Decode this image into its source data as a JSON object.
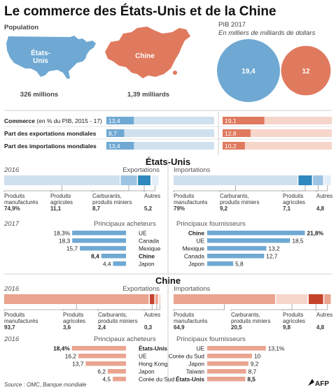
{
  "colors": {
    "us": "#6fa9d3",
    "us_light": "#cfe0ef",
    "us_mid": "#9cc3e2",
    "us_dark": "#2f88be",
    "cn": "#e07a5f",
    "cn_light": "#f6d5ca",
    "cn_mid": "#eaa48f",
    "cn_dark": "#c6432b",
    "text": "#1a1a1a",
    "grey": "#555555",
    "line": "#bdbdbd"
  },
  "title": "Le commerce des États-Unis et de la Chine",
  "population": {
    "heading": "Population",
    "us_name": "États-\nUnis",
    "us_value": "326 millions",
    "cn_name": "Chine",
    "cn_value": "1,39 milliards"
  },
  "pib": {
    "heading": "PIB 2017",
    "subheading": "En milliers de milliards de dollars",
    "us_label": "19,4",
    "cn_label": "12"
  },
  "comparison": {
    "rows": [
      {
        "label_bold": "Commerce",
        "label_rest": " (en % du PIB, 2015 - 17)",
        "us_label": "13,4",
        "cn_label": "19,1"
      },
      {
        "label_bold": "Part des exportations mondiales",
        "label_rest": "",
        "us_label": "8,7",
        "cn_label": "12,8"
      },
      {
        "label_bold": "Part des importations mondiales",
        "label_rest": "",
        "us_label": "13,4",
        "cn_label": "10,2"
      }
    ]
  },
  "us_section": {
    "title": "États-Unis",
    "year_struct": "2016",
    "exports_title": "Exportations",
    "imports_title": "Importations",
    "year_partners": "2017",
    "buyers_title": "Principaux acheteurs",
    "suppliers_title": "Principaux fournisseurs"
  },
  "cn_section": {
    "title": "Chine",
    "year_struct": "2016",
    "exports_title": "Exportations",
    "imports_title": "Importations",
    "year_partners": "2016",
    "buyers_title": "Principaux acheteurs",
    "suppliers_title": "Principaux fournisseurs"
  },
  "source": "Source : OMC, Banque mondiale",
  "logo_text": "AFP",
  "chart_data": [
    {
      "type": "bar",
      "title": "PIB 2017",
      "subtitle": "En milliers de milliards de dollars",
      "categories": [
        "États-Unis",
        "Chine"
      ],
      "values": [
        19.4,
        12
      ]
    },
    {
      "type": "bar",
      "categories": [
        "Commerce (en % du PIB, 2015 - 17)",
        "Part des exportations mondiales",
        "Part des importations mondiales"
      ],
      "series": [
        {
          "name": "États-Unis",
          "values": [
            13.4,
            8.7,
            13.4
          ]
        },
        {
          "name": "Chine",
          "values": [
            19.1,
            12.8,
            10.2
          ]
        }
      ]
    },
    {
      "type": "bar",
      "title": "États-Unis — Exportations",
      "year": "2016",
      "segments": [
        {
          "label": "Produits\nmanufacturés",
          "value": 74.9,
          "text": "74,9%",
          "shade": "light"
        },
        {
          "label": "Produits\nagricoles",
          "value": 11.1,
          "text": "11,1",
          "shade": "mid"
        },
        {
          "label": "Carburants,\nproduits miniers",
          "value": 8.7,
          "text": "8,7",
          "shade": "dark"
        },
        {
          "label": "Autres",
          "value": 5.2,
          "text": "5,2",
          "shade": "pale"
        }
      ]
    },
    {
      "type": "bar",
      "title": "États-Unis — Importations",
      "year": "2016",
      "segments": [
        {
          "label": "Produits\nmanufacturés",
          "value": 79,
          "text": "79%",
          "shade": "light"
        },
        {
          "label": "Carburants,\nproduits miniers",
          "value": 9.2,
          "text": "9,2",
          "shade": "dark"
        },
        {
          "label": "Produits\nagricoles",
          "value": 7.1,
          "text": "7,1",
          "shade": "mid"
        },
        {
          "label": "Autres",
          "value": 4.8,
          "text": "4,8",
          "shade": "pale"
        }
      ]
    },
    {
      "type": "bar",
      "title": "États-Unis — Principaux acheteurs",
      "year": "2017",
      "categories": [
        "UE",
        "Canada",
        "Mexique",
        "Chine",
        "Japon"
      ],
      "values": [
        18.3,
        18.3,
        15.7,
        8.4,
        4.4
      ],
      "labels": [
        "18,3%",
        "18,3",
        "15,7",
        "8,4",
        "4,4"
      ],
      "bold": [
        false,
        false,
        false,
        true,
        false
      ]
    },
    {
      "type": "bar",
      "title": "États-Unis — Principaux fournisseurs",
      "year": "2017",
      "categories": [
        "Chine",
        "UE",
        "Mexique",
        "Canada",
        "Japon"
      ],
      "values": [
        21.8,
        18.5,
        13.2,
        12.7,
        5.8
      ],
      "labels": [
        "21,8%",
        "18,5",
        "13,2",
        "12,7",
        "5,8"
      ],
      "bold": [
        true,
        false,
        false,
        false,
        false
      ]
    },
    {
      "type": "bar",
      "title": "Chine — Exportations",
      "year": "2016",
      "segments": [
        {
          "label": "Produits\nmanufacturés",
          "value": 93.7,
          "text": "93,7",
          "shade": "mid"
        },
        {
          "label": "Produits\nagricoles",
          "value": 3.6,
          "text": "3,6",
          "shade": "dark"
        },
        {
          "label": "Carburants,\nproduits miniers",
          "value": 2.4,
          "text": "2,4",
          "shade": "mid"
        },
        {
          "label": "Autres",
          "value": 0.3,
          "text": "0,3",
          "shade": "light"
        }
      ]
    },
    {
      "type": "bar",
      "title": "Chine — Importations",
      "year": "2016",
      "segments": [
        {
          "label": "Produits\nmanufacturés",
          "value": 64.9,
          "text": "64,9",
          "shade": "mid"
        },
        {
          "label": "Carburants,\nproduits miniers",
          "value": 20.5,
          "text": "20,5",
          "shade": "light"
        },
        {
          "label": "Produits\nagricoles",
          "value": 9.8,
          "text": "9,8",
          "shade": "dark"
        },
        {
          "label": "Autres",
          "value": 4.8,
          "text": "4,8",
          "shade": "mid"
        }
      ]
    },
    {
      "type": "bar",
      "title": "Chine — Principaux acheteurs",
      "year": "2016",
      "categories": [
        "États-Unis",
        "UE",
        "Hong Kong",
        "Japon",
        "Corée du Sud"
      ],
      "values": [
        18.4,
        16.2,
        13.7,
        6.2,
        4.5
      ],
      "labels": [
        "18,4%",
        "16,2",
        "13,7",
        "6,2",
        "4,5"
      ],
      "bold": [
        true,
        false,
        false,
        false,
        false
      ]
    },
    {
      "type": "bar",
      "title": "Chine — Principaux fournisseurs",
      "year": "2016",
      "categories": [
        "UE",
        "Corée du Sud",
        "Japon",
        "Taïwan",
        "États-Unis"
      ],
      "values": [
        13.1,
        10,
        9.2,
        8.7,
        8.5
      ],
      "labels": [
        "13,1%",
        "10",
        "9,2",
        "8,7",
        "8,5"
      ],
      "bold": [
        false,
        false,
        false,
        false,
        true
      ]
    }
  ]
}
